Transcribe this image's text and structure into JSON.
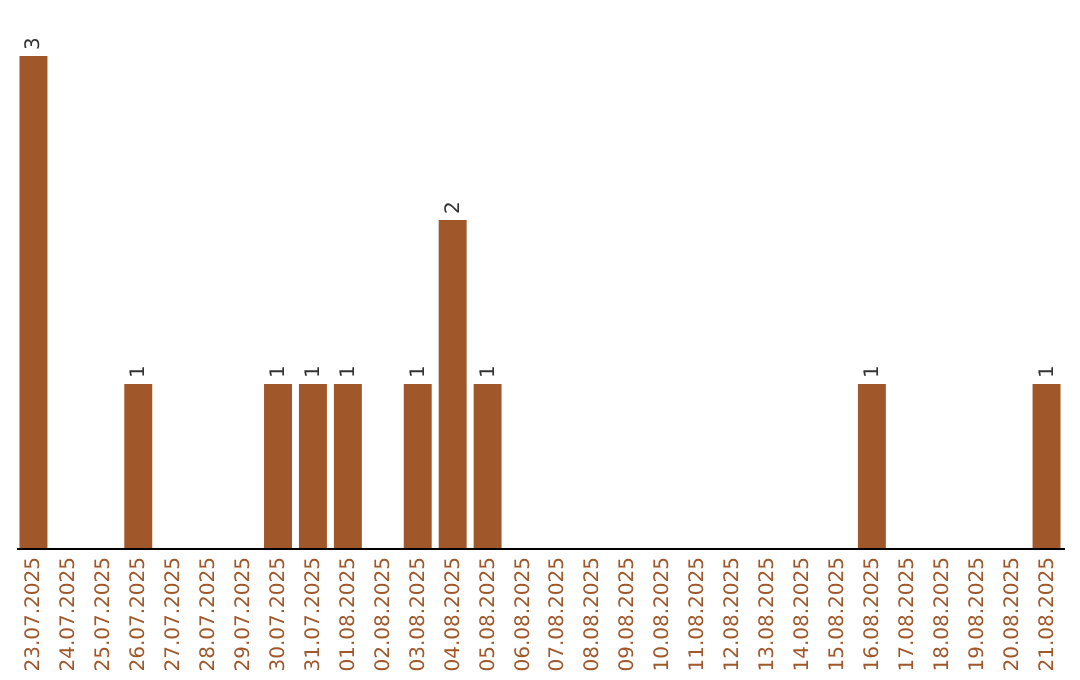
{
  "chart_data": {
    "type": "bar",
    "categories": [
      "23.07.2025",
      "24.07.2025",
      "25.07.2025",
      "26.07.2025",
      "27.07.2025",
      "28.07.2025",
      "29.07.2025",
      "30.07.2025",
      "31.07.2025",
      "01.08.2025",
      "02.08.2025",
      "03.08.2025",
      "04.08.2025",
      "05.08.2025",
      "06.08.2025",
      "07.08.2025",
      "08.08.2025",
      "09.08.2025",
      "10.08.2025",
      "11.08.2025",
      "12.08.2025",
      "13.08.2025",
      "14.08.2025",
      "15.08.2025",
      "16.08.2025",
      "17.08.2025",
      "18.08.2025",
      "19.08.2025",
      "20.08.2025",
      "21.08.2025"
    ],
    "values": [
      3,
      0,
      0,
      1,
      0,
      0,
      0,
      1,
      1,
      1,
      0,
      1,
      2,
      1,
      0,
      0,
      0,
      0,
      0,
      0,
      0,
      0,
      0,
      0,
      1,
      0,
      0,
      0,
      0,
      1
    ],
    "value_labels": [
      "3",
      null,
      null,
      "1",
      null,
      null,
      null,
      "1",
      "1",
      "1",
      null,
      "1",
      "2",
      "1",
      null,
      null,
      null,
      null,
      null,
      null,
      null,
      null,
      null,
      null,
      "1",
      null,
      null,
      null,
      null,
      "1"
    ],
    "color": "#a0572a",
    "tick_labels": "x"
  }
}
